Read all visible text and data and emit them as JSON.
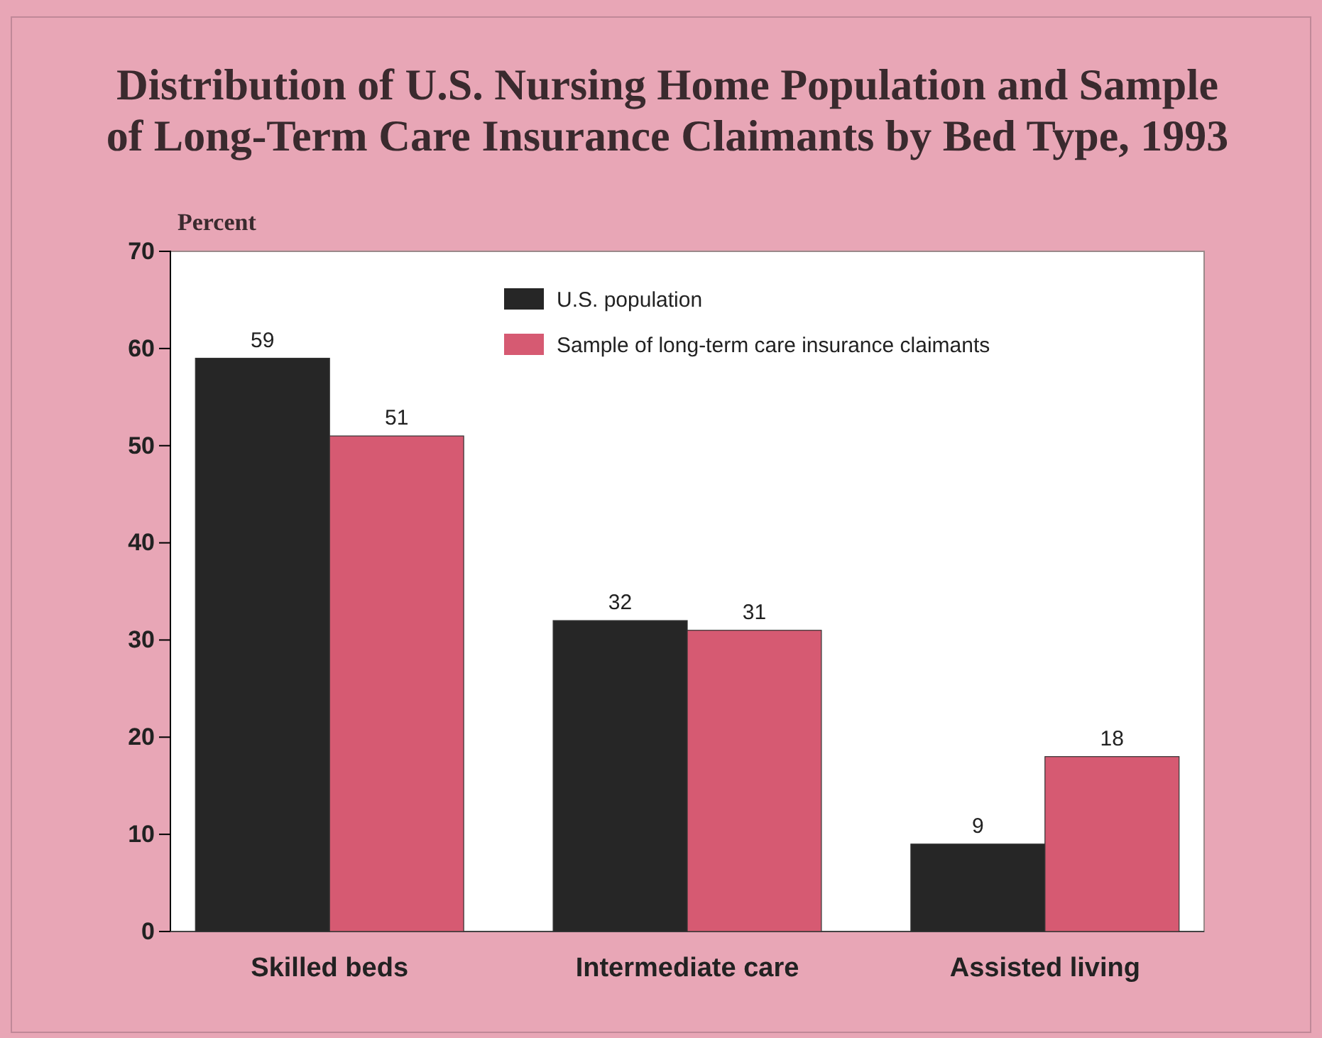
{
  "chart_data": {
    "type": "bar",
    "title": "Distribution of U.S. Nursing Home Population and Sample of Long-Term Care Insurance Claimants by Bed Type, 1993",
    "ylabel": "Percent",
    "categories": [
      "Skilled beds",
      "Intermediate care",
      "Assisted living"
    ],
    "series": [
      {
        "name": "U.S. population",
        "color": "#262626",
        "values": [
          59,
          32,
          9
        ]
      },
      {
        "name": "Sample of long-term care insurance claimants",
        "color": "#d65a72",
        "values": [
          51,
          31,
          18
        ]
      }
    ],
    "ylim": [
      0,
      70
    ],
    "yticks": [
      0,
      10,
      20,
      30,
      40,
      50,
      60,
      70
    ],
    "data_labels": true,
    "legend": "top",
    "grid": false
  }
}
